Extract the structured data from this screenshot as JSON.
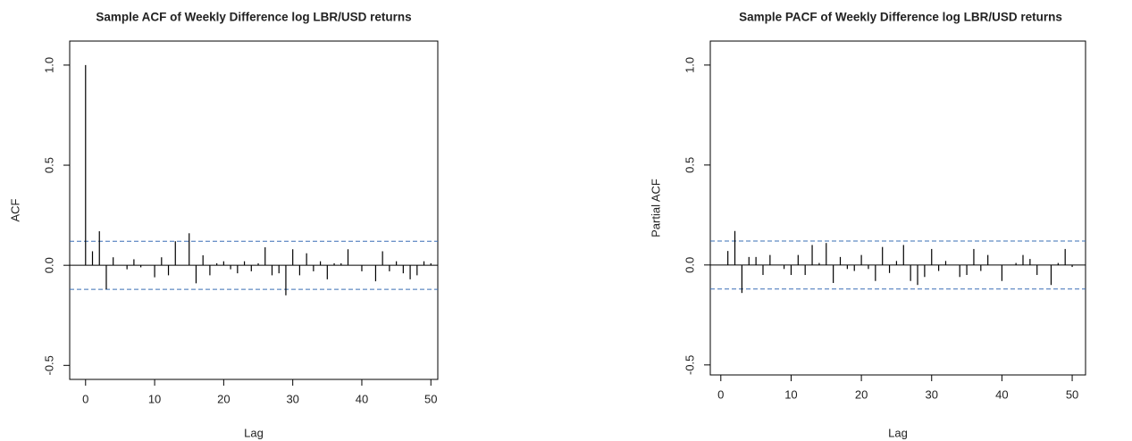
{
  "chart_data": [
    {
      "type": "stem",
      "title": "Sample ACF of Weekly Difference log LBR/USD returns",
      "xlabel": "Lag",
      "ylabel": "ACF",
      "x": [
        0,
        1,
        2,
        3,
        4,
        5,
        6,
        7,
        8,
        9,
        10,
        11,
        12,
        13,
        14,
        15,
        16,
        17,
        18,
        19,
        20,
        21,
        22,
        23,
        24,
        25,
        26,
        27,
        28,
        29,
        30,
        31,
        32,
        33,
        34,
        35,
        36,
        37,
        38,
        39,
        40,
        41,
        42,
        43,
        44,
        45,
        46,
        47,
        48,
        49,
        50
      ],
      "values": [
        1.0,
        0.07,
        0.17,
        -0.12,
        0.04,
        0.0,
        -0.02,
        0.03,
        -0.01,
        0.0,
        -0.06,
        0.04,
        -0.05,
        0.12,
        0.0,
        0.16,
        -0.09,
        0.05,
        -0.05,
        0.01,
        0.02,
        -0.02,
        -0.04,
        0.02,
        -0.03,
        0.01,
        0.09,
        -0.05,
        -0.04,
        -0.15,
        0.08,
        -0.05,
        0.06,
        -0.03,
        0.02,
        -0.07,
        0.01,
        0.01,
        0.08,
        0.0,
        -0.03,
        0.0,
        -0.08,
        0.07,
        -0.03,
        0.02,
        -0.04,
        -0.07,
        -0.05,
        0.02,
        0.01
      ],
      "color": "#000000",
      "bounds": [
        -0.12,
        0.12
      ],
      "bounds_color": "#3a6fb5",
      "xlim": [
        -2.3,
        51
      ],
      "ylim": [
        -0.57,
        1.12
      ],
      "xticks": [
        0,
        10,
        20,
        30,
        40,
        50
      ],
      "yticks": [
        {
          "value": -0.5,
          "label": "-0.5"
        },
        {
          "value": 0,
          "label": "0.0"
        },
        {
          "value": 0.5,
          "label": "0.5"
        },
        {
          "value": 1,
          "label": "1.0"
        }
      ]
    },
    {
      "type": "stem",
      "title": "Sample PACF of Weekly Difference log LBR/USD returns",
      "xlabel": "Lag",
      "ylabel": "Partial ACF",
      "x": [
        1,
        2,
        3,
        4,
        5,
        6,
        7,
        8,
        9,
        10,
        11,
        12,
        13,
        14,
        15,
        16,
        17,
        18,
        19,
        20,
        21,
        22,
        23,
        24,
        25,
        26,
        27,
        28,
        29,
        30,
        31,
        32,
        33,
        34,
        35,
        36,
        37,
        38,
        39,
        40,
        41,
        42,
        43,
        44,
        45,
        46,
        47,
        48,
        49,
        50
      ],
      "values": [
        0.07,
        0.17,
        -0.14,
        0.04,
        0.04,
        -0.05,
        0.05,
        0.0,
        -0.02,
        -0.05,
        0.05,
        -0.05,
        0.1,
        0.01,
        0.11,
        -0.09,
        0.04,
        -0.02,
        -0.03,
        0.05,
        -0.02,
        -0.08,
        0.09,
        -0.04,
        0.02,
        0.1,
        -0.08,
        -0.1,
        -0.06,
        0.08,
        -0.03,
        0.02,
        0.0,
        -0.06,
        -0.05,
        0.08,
        -0.03,
        0.05,
        0.0,
        -0.08,
        0.0,
        0.01,
        0.05,
        0.03,
        -0.05,
        0.0,
        -0.1,
        0.01,
        0.08,
        -0.01
      ],
      "color": "#000000",
      "bounds": [
        -0.12,
        0.12
      ],
      "bounds_color": "#3a6fb5",
      "xlim": [
        -1.5,
        51.9
      ],
      "ylim": [
        -0.55,
        1.12
      ],
      "xticks": [
        0,
        10,
        20,
        30,
        40,
        50
      ],
      "yticks": [
        {
          "value": -0.5,
          "label": "-0.5"
        },
        {
          "value": 0,
          "label": "0.0"
        },
        {
          "value": 0.5,
          "label": "0.5"
        },
        {
          "value": 1,
          "label": "1.0"
        }
      ]
    }
  ]
}
